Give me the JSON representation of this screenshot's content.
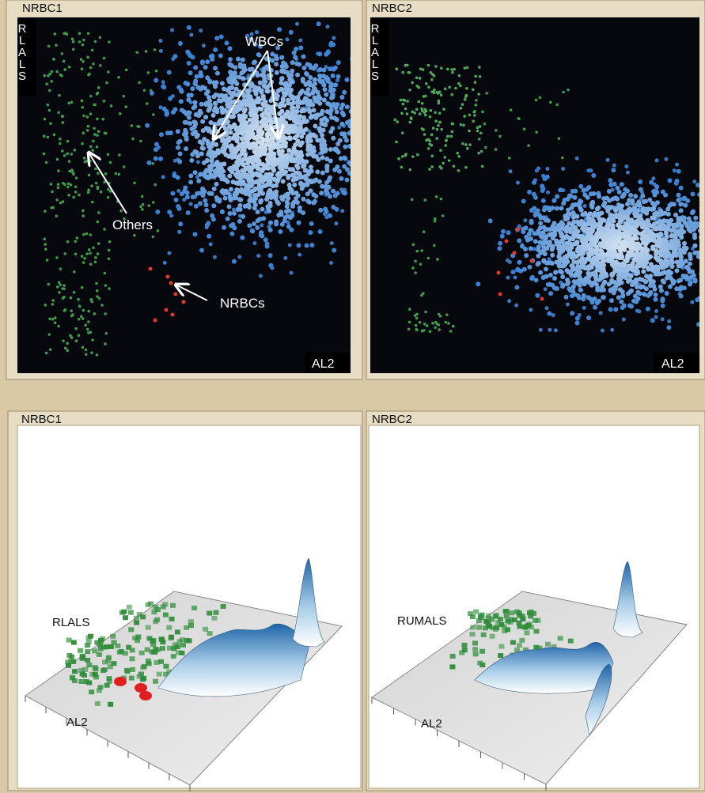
{
  "panels": [
    {
      "title": "NRBC1",
      "y_axis_label": "RLALS",
      "x_axis_label": "AL2",
      "annotations": [
        "WBCs",
        "Others",
        "NRBCs"
      ]
    },
    {
      "title": "NRBC2",
      "y_axis_label": "RLALS",
      "x_axis_label": "AL2"
    },
    {
      "title": "NRBC1",
      "y_axis_label": "RLALS",
      "x_axis_label": "AL2"
    },
    {
      "title": "NRBC2",
      "y_axis_label": "RUMALS",
      "x_axis_label": "AL2"
    }
  ]
}
